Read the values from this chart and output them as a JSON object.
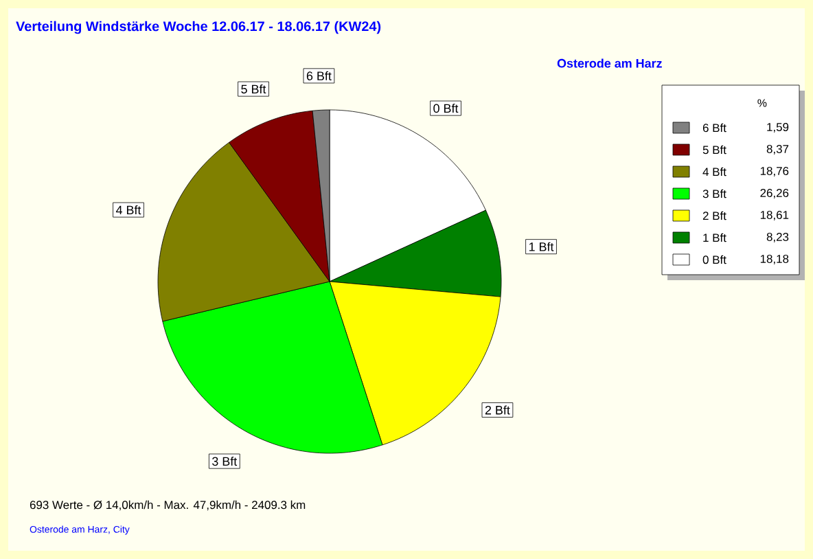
{
  "chart_data": {
    "type": "pie",
    "title": "Verteilung Windstärke  Woche 12.06.17 - 18.06.17 (KW24)",
    "subtitle": "Osterode am Harz",
    "categories": [
      "0 Bft",
      "1 Bft",
      "2 Bft",
      "3 Bft",
      "4 Bft",
      "5 Bft",
      "6 Bft"
    ],
    "values": [
      18.18,
      8.23,
      18.61,
      26.26,
      18.76,
      8.37,
      1.59
    ],
    "value_labels": [
      "18,18",
      "8,23",
      "18,61",
      "26,26",
      "18,76",
      "8,37",
      "1,59"
    ],
    "colors": [
      "#ffffff",
      "#008000",
      "#ffff00",
      "#00ff00",
      "#808000",
      "#800000",
      "#808080"
    ],
    "legend": "right",
    "legend_title": "%",
    "annotations": [
      "693 Werte   -   Ø 14,0km/h  -  Max. 47,9km/h   -   2409.3 km",
      "Osterode am Harz, City"
    ]
  }
}
